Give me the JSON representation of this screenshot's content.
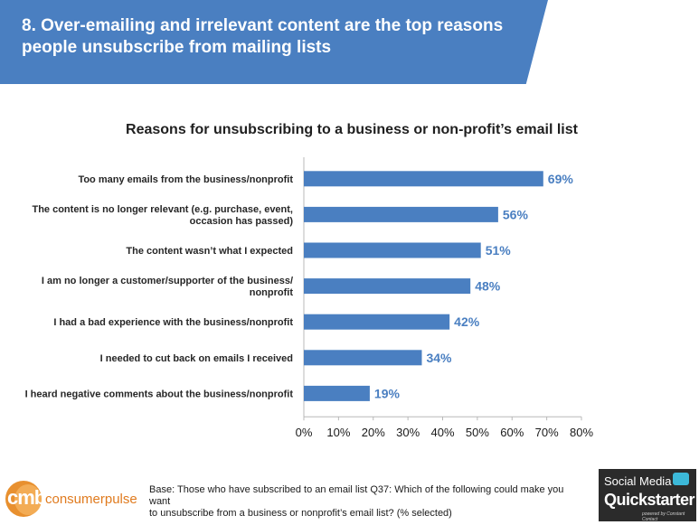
{
  "header": {
    "title": "8. Over-emailing and irrelevant content are the top reasons people unsubscribe from mailing lists"
  },
  "chart_data": {
    "type": "bar",
    "orientation": "horizontal",
    "title": "Reasons for unsubscribing  to a business or non-profit’s email list",
    "categories": [
      [
        "Too many emails from the business/nonprofit"
      ],
      [
        "The content is no longer relevant (e.g. purchase, event,",
        "occasion has passed)"
      ],
      [
        "The content wasn’t what I expected"
      ],
      [
        "I am no longer a customer/supporter of the business/",
        "nonprofit"
      ],
      [
        "I had a bad experience with the business/nonprofit"
      ],
      [
        "I needed to cut back on emails I received"
      ],
      [
        "I heard negative comments about the business/nonprofit"
      ]
    ],
    "values": [
      69,
      56,
      51,
      48,
      42,
      34,
      19
    ],
    "value_labels": [
      "69%",
      "56%",
      "51%",
      "48%",
      "42%",
      "34%",
      "19%"
    ],
    "xlim": [
      0,
      80
    ],
    "x_ticks": [
      0,
      10,
      20,
      30,
      40,
      50,
      60,
      70,
      80
    ],
    "x_tick_labels": [
      "0%",
      "10%",
      "20%",
      "30%",
      "40%",
      "50%",
      "60%",
      "70%",
      "80%"
    ],
    "bar_color": "#4a7fc1",
    "grid": false
  },
  "footer": {
    "logo_left_mark": "cmb",
    "logo_left_text": "consumerpulse",
    "note_lines": [
      "Base: Those who have subscribed to an email list Q37: Which of the following could make you want",
      "to unsubscribe from a business or nonprofit’s email list? (% selected)"
    ],
    "logo_right_line1": "Social Media",
    "logo_right_line2": "Quickstarter",
    "logo_right_line3": "powered by Constant Contact"
  },
  "colors": {
    "accent": "#4a7fc1",
    "brand_orange": "#e07b1f"
  }
}
